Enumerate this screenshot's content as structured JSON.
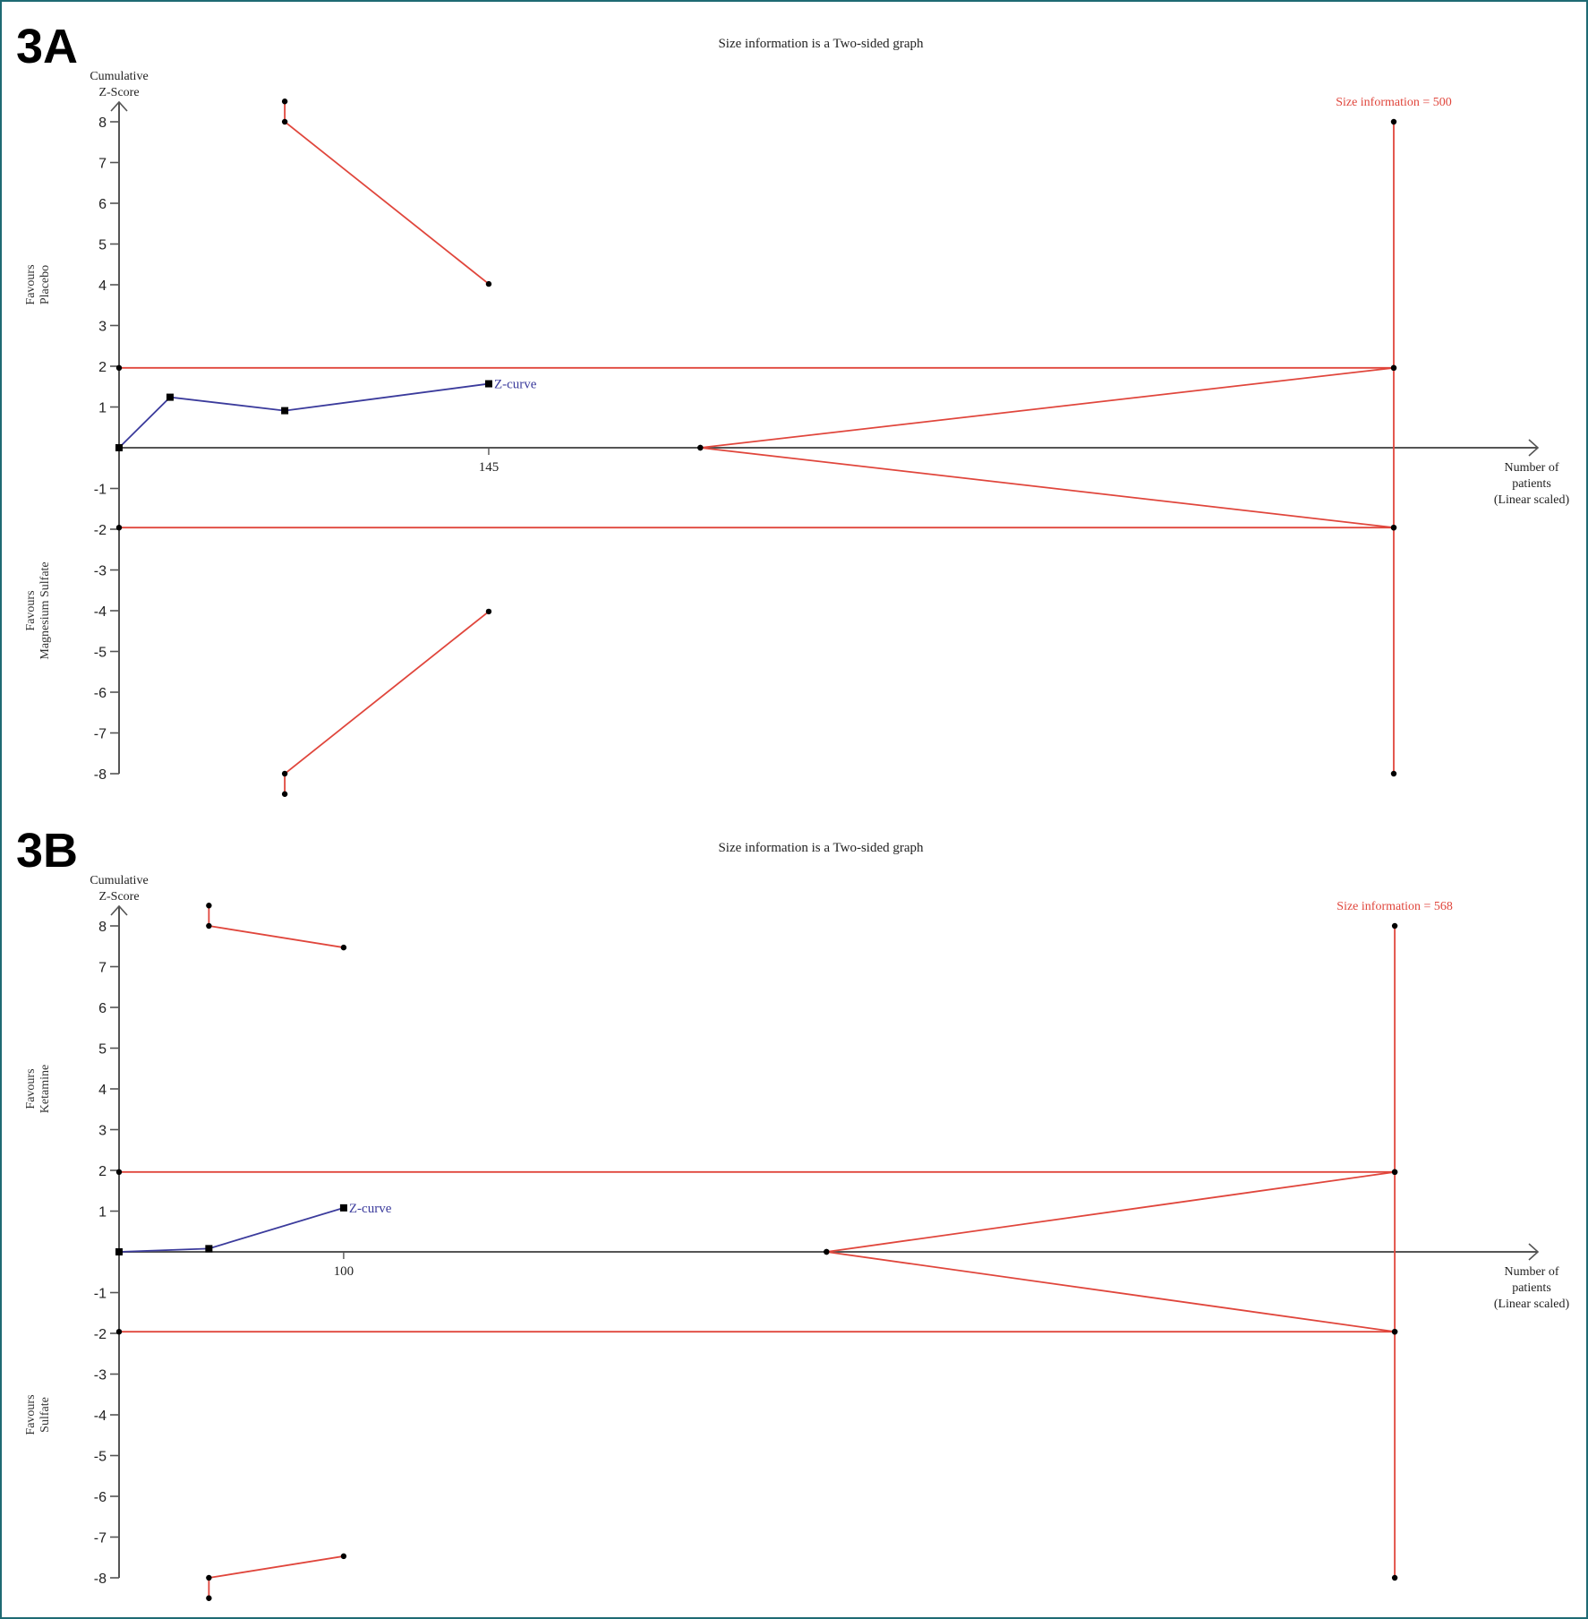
{
  "colors": {
    "boundary": "#e0463c",
    "zcurve": "#3b3b9c",
    "axis": "#555555",
    "marker": "#000000",
    "border": "#1e6a73"
  },
  "chart_data": [
    {
      "type": "line",
      "panel_label": "3A",
      "title": "Size information is a Two-sided graph",
      "ylabel": [
        "Cumulative",
        "Z-Score"
      ],
      "xlabel": [
        "Number of",
        "patients",
        "(Linear scaled)"
      ],
      "favours_top": [
        "Favours",
        "Placebo"
      ],
      "favours_bottom": [
        "Favours",
        "Magnesium Sulfate"
      ],
      "yticks": [
        8,
        7,
        6,
        5,
        4,
        3,
        2,
        1,
        -1,
        -2,
        -3,
        -4,
        -5,
        -6,
        -7,
        -8
      ],
      "ylim": [
        -8,
        8
      ],
      "xlim": [
        0,
        580
      ],
      "xticks": [
        145
      ],
      "required_information_size": 500,
      "size_label": "Size information = 500",
      "conventional_boundary": 1.96,
      "series": [
        {
          "name": "Z-curve",
          "label": "Z-curve",
          "x": [
            0,
            20,
            65,
            145
          ],
          "y": [
            0,
            1.24,
            0.91,
            1.57
          ]
        },
        {
          "name": "Upper monitoring boundary",
          "x": [
            65,
            65,
            145
          ],
          "y": [
            8.5,
            8.0,
            4.02
          ]
        },
        {
          "name": "Lower monitoring boundary",
          "x": [
            65,
            65,
            145
          ],
          "y": [
            -8.5,
            -8.0,
            -4.02
          ]
        },
        {
          "name": "Upper futility boundary",
          "x": [
            228,
            500
          ],
          "y": [
            0,
            1.96
          ]
        },
        {
          "name": "Lower futility boundary",
          "x": [
            228,
            500
          ],
          "y": [
            0,
            -1.96
          ]
        }
      ]
    },
    {
      "type": "line",
      "panel_label": "3B",
      "title": "Size information is a Two-sided graph",
      "ylabel": [
        "Cumulative",
        "Z-Score"
      ],
      "xlabel": [
        "Number of",
        "patients",
        "(Linear scaled)"
      ],
      "favours_top": [
        "Favours",
        "Ketamine"
      ],
      "favours_bottom": [
        "Favours",
        "Sulfate"
      ],
      "yticks": [
        8,
        7,
        6,
        5,
        4,
        3,
        2,
        1,
        -1,
        -2,
        -3,
        -4,
        -5,
        -6,
        -7,
        -8
      ],
      "ylim": [
        -8,
        8
      ],
      "xlim": [
        0,
        660
      ],
      "xticks": [
        100
      ],
      "required_information_size": 568,
      "size_label": "Size information = 568",
      "conventional_boundary": 1.96,
      "series": [
        {
          "name": "Z-curve",
          "label": "Z-curve",
          "x": [
            0,
            40,
            100
          ],
          "y": [
            0,
            0.08,
            1.08
          ]
        },
        {
          "name": "Upper monitoring boundary",
          "x": [
            40,
            40,
            100
          ],
          "y": [
            8.5,
            8.0,
            7.47
          ]
        },
        {
          "name": "Lower monitoring boundary",
          "x": [
            40,
            40,
            100
          ],
          "y": [
            -8.5,
            -8.0,
            -7.47
          ]
        },
        {
          "name": "Upper futility boundary",
          "x": [
            315,
            568
          ],
          "y": [
            0,
            1.96
          ]
        },
        {
          "name": "Lower futility boundary",
          "x": [
            315,
            568
          ],
          "y": [
            0,
            -1.96
          ]
        }
      ]
    }
  ]
}
